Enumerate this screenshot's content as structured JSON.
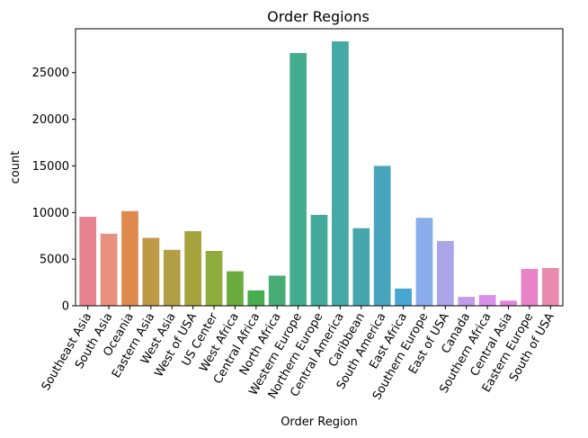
{
  "chart_data": {
    "type": "bar",
    "title": "Order Regions",
    "xlabel": "Order Region",
    "ylabel": "count",
    "ylim": [
      0,
      29700
    ],
    "yticks": [
      0,
      5000,
      10000,
      15000,
      20000,
      25000
    ],
    "grid": false,
    "categories": [
      "Southeast Asia",
      "South Asia",
      "Oceania",
      "Eastern Asia",
      "West Asia",
      "West of USA",
      "US Center",
      "West Africa",
      "Central Africa",
      "North Africa",
      "Western Europe",
      "Northern Europe",
      "Central America",
      "Caribbean",
      "South America",
      "East Africa",
      "Southern Europe",
      "East of USA",
      "Canada",
      "Southern Africa",
      "Central Asia",
      "Eastern Europe",
      "South of  USA"
    ],
    "values": [
      9540,
      7730,
      10150,
      7280,
      6000,
      8000,
      5880,
      3700,
      1650,
      3230,
      27100,
      9750,
      28350,
      8320,
      15000,
      1850,
      9430,
      6950,
      960,
      1150,
      550,
      3950,
      4050
    ],
    "colors": [
      "#e8828f",
      "#e8917f",
      "#df8a4d",
      "#bd9a45",
      "#b19e45",
      "#a7a43e",
      "#8fac3c",
      "#6cab3d",
      "#48ad4e",
      "#48ad75",
      "#45ad8f",
      "#44aa9c",
      "#45a9a5",
      "#45a6ae",
      "#47a5bc",
      "#49a5d2",
      "#8aadeb",
      "#aba6ea",
      "#c59cea",
      "#d68feb",
      "#e283dd",
      "#e783c6",
      "#e88bac"
    ]
  }
}
